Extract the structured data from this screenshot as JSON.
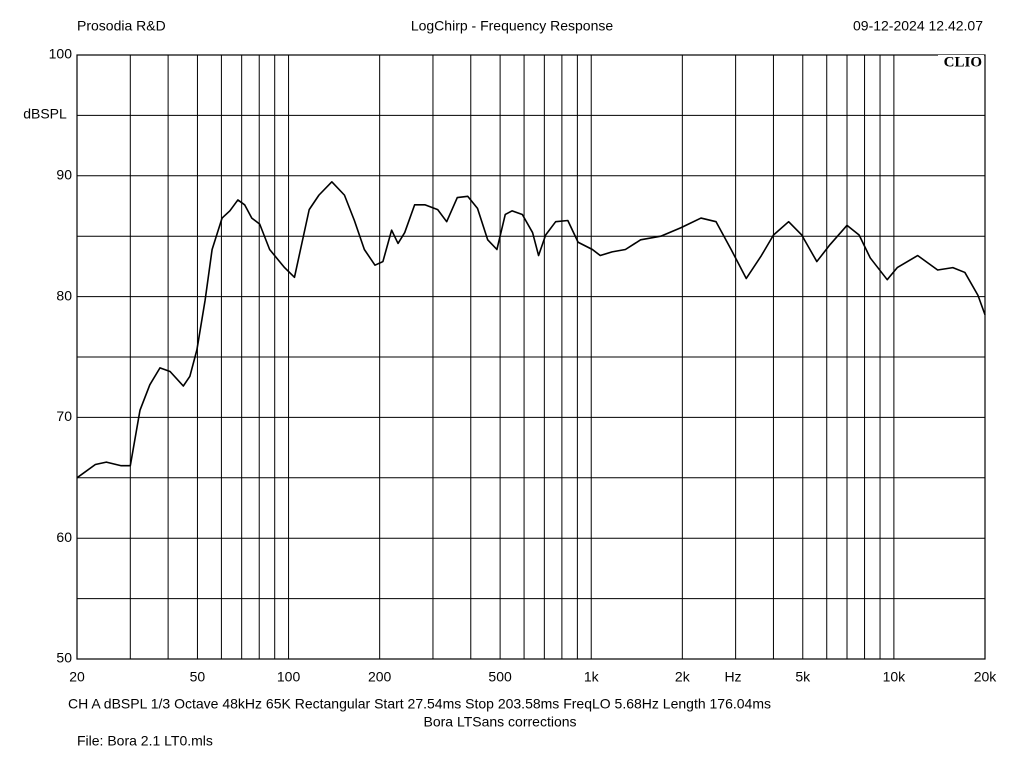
{
  "chart_data": {
    "type": "line",
    "header_left": "Prosodia R&D",
    "title": "LogChirp - Frequency Response",
    "header_right": "09-12-2024 12.42.07",
    "logo": "CLIO",
    "y_label": "dBSPL",
    "x_label": "Hz",
    "footer": [
      "CH A   dBSPL   1/3 Octave   48kHz   65K   Rectangular   Start 27.54ms   Stop 203.58ms   FreqLO 5.68Hz   Length 176.04ms",
      "Bora LTSans corrections",
      "File: Bora 2.1 LT0.mls"
    ],
    "xlog": true,
    "color": "#000000",
    "xlim": [
      20,
      20000
    ],
    "ylim": [
      50,
      100
    ],
    "xticks": [
      20,
      50,
      100,
      200,
      500,
      {
        "value": 1000,
        "label": "1k"
      },
      {
        "value": 2000,
        "label": "2k"
      },
      {
        "value": 5000,
        "label": "5k"
      },
      {
        "value": 10000,
        "label": "10k"
      },
      {
        "value": 20000,
        "label": "20k"
      }
    ],
    "xminor": [
      30,
      40,
      60,
      70,
      80,
      90,
      300,
      400,
      600,
      700,
      800,
      900,
      3000,
      4000,
      6000,
      7000,
      8000,
      9000
    ],
    "yticks": [
      50,
      60,
      70,
      80,
      90,
      100
    ],
    "yminor": [
      55,
      65,
      75,
      85,
      95
    ],
    "grid": true,
    "x": [
      20,
      23,
      25,
      28,
      30,
      32.3,
      34.8,
      37.6,
      40.6,
      44.9,
      47.2,
      49.8,
      53,
      55.9,
      60.3,
      64,
      68,
      71.6,
      75.6,
      80.3,
      86.6,
      97,
      104.6,
      117,
      126,
      139,
      153,
      165,
      178,
      193,
      205,
      219,
      230,
      242,
      261,
      282,
      311,
      333,
      361,
      391,
      421,
      455,
      488,
      520,
      548,
      592,
      640,
      670,
      707,
      763,
      837,
      905,
      1009,
      1071,
      1172,
      1297,
      1456,
      1697,
      1978,
      2305,
      2585,
      2899,
      3253,
      3650,
      4002,
      4490,
      4959,
      5564,
      6151,
      7002,
      7675,
      8354,
      9506,
      10260,
      11980,
      13950,
      15660,
      17160,
      18960,
      20000
    ],
    "values": [
      65.0,
      66.1,
      66.3,
      66.0,
      66.0,
      70.6,
      72.7,
      74.1,
      73.8,
      72.6,
      73.4,
      75.6,
      79.7,
      83.9,
      86.5,
      87.1,
      88.0,
      87.6,
      86.5,
      86.0,
      83.9,
      82.4,
      81.6,
      87.2,
      88.4,
      89.5,
      88.4,
      86.3,
      83.9,
      82.6,
      82.9,
      85.5,
      84.4,
      85.3,
      87.6,
      87.6,
      87.2,
      86.2,
      88.2,
      88.3,
      87.3,
      84.7,
      83.9,
      86.8,
      87.1,
      86.8,
      85.3,
      83.4,
      85.1,
      86.2,
      86.3,
      84.5,
      83.9,
      83.4,
      83.7,
      83.9,
      84.7,
      85.0,
      85.7,
      86.5,
      86.2,
      83.9,
      81.5,
      83.4,
      85.1,
      86.2,
      85.1,
      82.9,
      84.3,
      85.9,
      85.1,
      83.2,
      81.4,
      82.4,
      83.4,
      82.2,
      82.4,
      82.0,
      80.1,
      78.5
    ]
  }
}
